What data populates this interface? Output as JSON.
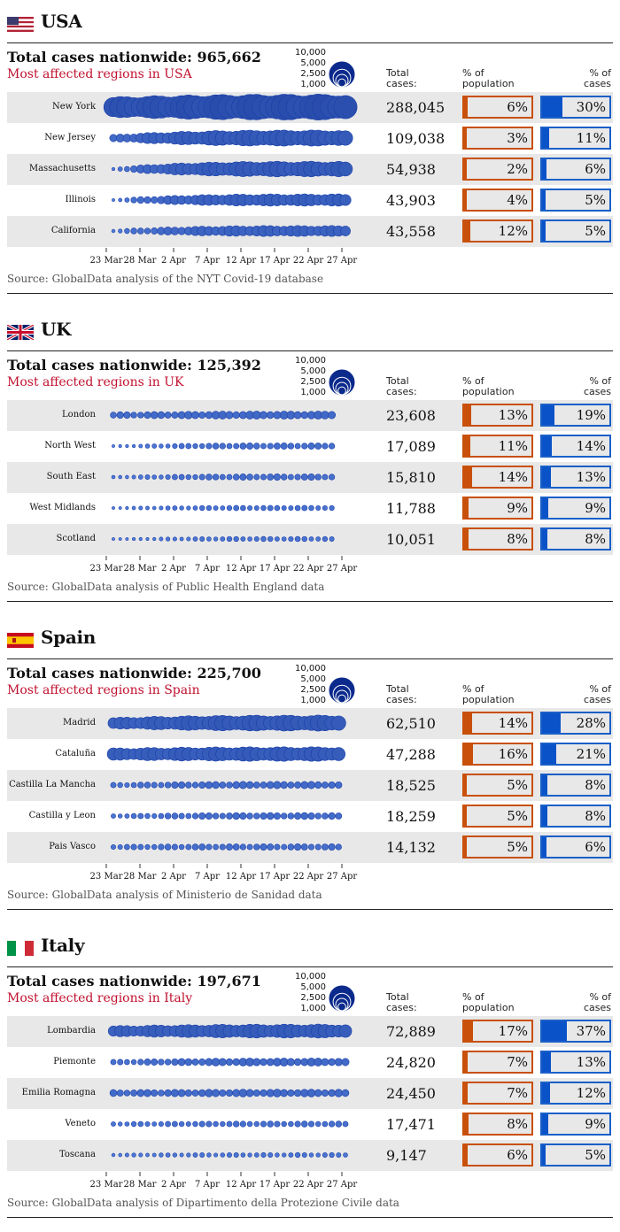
{
  "legend": {
    "labels": [
      "10,000",
      "5,000",
      "2,500",
      "1,000"
    ],
    "values": [
      10000,
      5000,
      2500,
      1000
    ]
  },
  "col_headers": {
    "total": "Total cases:",
    "population": "% of population",
    "cases": "% of cases"
  },
  "dates": [
    "23 Mar",
    "28 Mar",
    "2 Apr",
    "7 Apr",
    "12 Apr",
    "17 Apr",
    "22 Apr",
    "27 Apr"
  ],
  "colors": {
    "bubble_light": "#5b8cef",
    "bubble_dark": "#0b2a8c",
    "population": "#c8500a",
    "cases": "#0a52c8",
    "title_red": "#c0112f"
  },
  "chart_data": [
    {
      "type": "scatter",
      "country": "USA",
      "flag": "us-flag",
      "total_line": "Total cases nationwide: 965,662",
      "subtitle": "Most affected regions in USA",
      "source": "Source: GlobalData analysis of the NYT Covid-19 database",
      "regions": [
        {
          "name": "New York",
          "total": "288,045",
          "pop_pct": 6,
          "pop_label": "6%",
          "case_pct": 30,
          "case_label": "30%",
          "peak": 11000,
          "start": 7000,
          "days": 35
        },
        {
          "name": "New Jersey",
          "total": "109,038",
          "pop_pct": 3,
          "pop_label": "3%",
          "case_pct": 11,
          "case_label": "11%",
          "peak": 4300,
          "start": 900,
          "days": 35
        },
        {
          "name": "Massachusetts",
          "total": "54,938",
          "pop_pct": 2,
          "pop_label": "2%",
          "case_pct": 6,
          "case_label": "6%",
          "peak": 4000,
          "start": 150,
          "days": 35
        },
        {
          "name": "Illinois",
          "total": "43,903",
          "pop_pct": 4,
          "pop_label": "4%",
          "case_pct": 5,
          "case_label": "5%",
          "peak": 2500,
          "start": 150,
          "days": 35
        },
        {
          "name": "California",
          "total": "43,558",
          "pop_pct": 12,
          "pop_label": "12%",
          "case_pct": 5,
          "case_label": "5%",
          "peak": 2000,
          "start": 250,
          "days": 35
        }
      ]
    },
    {
      "type": "scatter",
      "country": "UK",
      "flag": "uk-flag",
      "total_line": "Total cases nationwide: 125,392",
      "subtitle": "Most affected regions in UK",
      "source": "Source: GlobalData analysis of Public Health England data",
      "regions": [
        {
          "name": "London",
          "total": "23,608",
          "pop_pct": 13,
          "pop_label": "13%",
          "case_pct": 19,
          "case_label": "19%",
          "peak": 1100,
          "start": 700,
          "days": 33
        },
        {
          "name": "North West",
          "total": "17,089",
          "pop_pct": 11,
          "pop_label": "11%",
          "case_pct": 14,
          "case_label": "14%",
          "peak": 700,
          "start": 120,
          "days": 33
        },
        {
          "name": "South East",
          "total": "15,810",
          "pop_pct": 14,
          "pop_label": "14%",
          "case_pct": 13,
          "case_label": "13%",
          "peak": 700,
          "start": 200,
          "days": 33
        },
        {
          "name": "West Midlands",
          "total": "11,788",
          "pop_pct": 9,
          "pop_label": "9%",
          "case_pct": 9,
          "case_label": "9%",
          "peak": 500,
          "start": 150,
          "days": 33
        },
        {
          "name": "Scotland",
          "total": "10,051",
          "pop_pct": 8,
          "pop_label": "8%",
          "case_pct": 8,
          "case_label": "8%",
          "peak": 450,
          "start": 80,
          "days": 33
        }
      ]
    },
    {
      "type": "scatter",
      "country": "Spain",
      "flag": "spain-flag",
      "total_line": "Total cases nationwide: 225,700",
      "subtitle": "Most affected regions in Spain",
      "source": "Source: GlobalData analysis of Ministerio de Sanidad data",
      "regions": [
        {
          "name": "Madrid",
          "total": "62,510",
          "pop_pct": 14,
          "pop_label": "14%",
          "case_pct": 28,
          "case_label": "28%",
          "peak": 4200,
          "start": 2200,
          "days": 34
        },
        {
          "name": "Cataluña",
          "total": "47,288",
          "pop_pct": 16,
          "pop_label": "16%",
          "case_pct": 21,
          "case_label": "21%",
          "peak": 3500,
          "start": 2500,
          "days": 34
        },
        {
          "name": "Castilla La Mancha",
          "total": "18,525",
          "pop_pct": 5,
          "pop_label": "5%",
          "case_pct": 8,
          "case_label": "8%",
          "peak": 900,
          "start": 500,
          "days": 34
        },
        {
          "name": "Castilla y Leon",
          "total": "18,259",
          "pop_pct": 5,
          "pop_label": "5%",
          "case_pct": 8,
          "case_label": "8%",
          "peak": 800,
          "start": 400,
          "days": 34
        },
        {
          "name": "Pais Vasco",
          "total": "14,132",
          "pop_pct": 5,
          "pop_label": "5%",
          "case_pct": 6,
          "case_label": "6%",
          "peak": 700,
          "start": 500,
          "days": 34
        }
      ]
    },
    {
      "type": "scatter",
      "country": "Italy",
      "flag": "italy-flag",
      "total_line": "Total cases nationwide: 197,671",
      "subtitle": "Most affected regions in Italy",
      "source": "Source: GlobalData analysis of Dipartimento della Protezione Civile data",
      "regions": [
        {
          "name": "Lombardia",
          "total": "72,889",
          "pop_pct": 17,
          "pop_label": "17%",
          "case_pct": 37,
          "case_label": "37%",
          "peak": 3200,
          "start": 2000,
          "days": 35
        },
        {
          "name": "Piemonte",
          "total": "24,820",
          "pop_pct": 7,
          "pop_label": "7%",
          "case_pct": 13,
          "case_label": "13%",
          "peak": 1100,
          "start": 500,
          "days": 35
        },
        {
          "name": "Emilia Romagna",
          "total": "24,450",
          "pop_pct": 7,
          "pop_label": "7%",
          "case_pct": 12,
          "case_label": "12%",
          "peak": 1000,
          "start": 800,
          "days": 35
        },
        {
          "name": "Veneto",
          "total": "17,471",
          "pop_pct": 8,
          "pop_label": "8%",
          "case_pct": 9,
          "case_label": "9%",
          "peak": 600,
          "start": 400,
          "days": 35
        },
        {
          "name": "Toscana",
          "total": "9,147",
          "pop_pct": 6,
          "pop_label": "6%",
          "case_pct": 5,
          "case_label": "5%",
          "peak": 400,
          "start": 250,
          "days": 35
        }
      ]
    }
  ]
}
